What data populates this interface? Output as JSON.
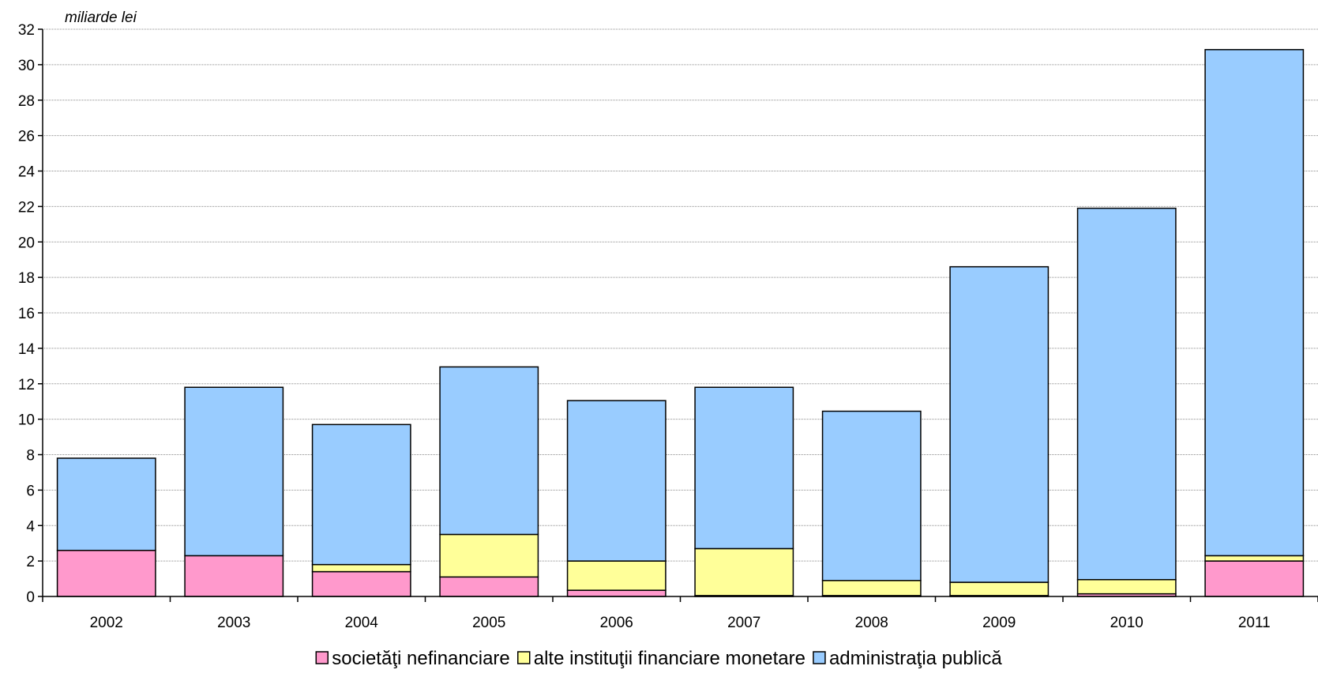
{
  "chart_data": {
    "type": "bar",
    "stacked": true,
    "unit_label": "miliarde lei",
    "categories": [
      "2002",
      "2003",
      "2004",
      "2005",
      "2006",
      "2007",
      "2008",
      "2009",
      "2010",
      "2011"
    ],
    "series": [
      {
        "name": "societăţi nefinanciare",
        "color": "#ff99cc",
        "values": [
          2.6,
          2.3,
          1.4,
          1.1,
          0.35,
          0.05,
          0.05,
          0.05,
          0.15,
          2.0
        ]
      },
      {
        "name": "alte instituţii financiare monetare",
        "color": "#ffff99",
        "values": [
          0.0,
          0.0,
          0.4,
          2.4,
          1.65,
          2.65,
          0.85,
          0.75,
          0.8,
          0.3
        ]
      },
      {
        "name": "administraţia publică",
        "color": "#99ccff",
        "values": [
          5.2,
          9.5,
          7.9,
          9.45,
          9.05,
          9.1,
          9.55,
          17.8,
          20.95,
          28.55
        ]
      }
    ],
    "ylim": [
      0,
      32
    ],
    "yticks": [
      0,
      2,
      4,
      6,
      8,
      10,
      12,
      14,
      16,
      18,
      20,
      22,
      24,
      26,
      28,
      30,
      32
    ],
    "grid": true,
    "legend_position": "bottom"
  }
}
